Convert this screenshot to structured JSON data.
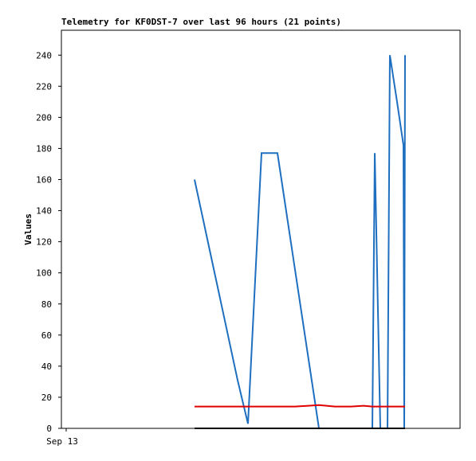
{
  "chart_data": {
    "type": "line",
    "title": "Telemetry for KF0DST-7 over last 96 hours (21 points)",
    "y_label": "Values",
    "x": [
      32.06,
      35.52,
      38.98,
      42.43,
      44.93,
      48.19,
      52.03,
      56.26,
      62.02,
      65.86,
      69.7,
      72.77,
      74.88,
      75.46,
      76.8,
      78.53,
      79.1,
      80.83,
      82.37,
      82.56,
      82.75
    ],
    "xlim": [
      0,
      96
    ],
    "xticks": [
      {
        "value": 1.15,
        "label": "Sep 13"
      }
    ],
    "ylim": [
      0,
      256
    ],
    "yticks": [
      0,
      20,
      40,
      60,
      80,
      100,
      120,
      140,
      160,
      180,
      200,
      220,
      240
    ],
    "series": [
      {
        "color": "#1f6fc0",
        "values": [
          160,
          117,
          74,
          31,
          3,
          177,
          177,
          102,
          0,
          0,
          0,
          0,
          0,
          177,
          0,
          0,
          240,
          210,
          182,
          0,
          240
        ]
      },
      {
        "color": "#e00000",
        "values": [
          14,
          14,
          14,
          14,
          14,
          14,
          14,
          14,
          15,
          14,
          14,
          14.5,
          14,
          14,
          14,
          14,
          14,
          14,
          14,
          14,
          14
        ]
      },
      {
        "color": "#000000",
        "values": [
          0,
          0,
          0,
          0,
          0,
          0,
          0,
          0,
          0,
          0,
          0,
          0,
          0,
          0,
          0,
          0,
          0,
          0,
          0,
          0,
          0
        ]
      }
    ]
  }
}
